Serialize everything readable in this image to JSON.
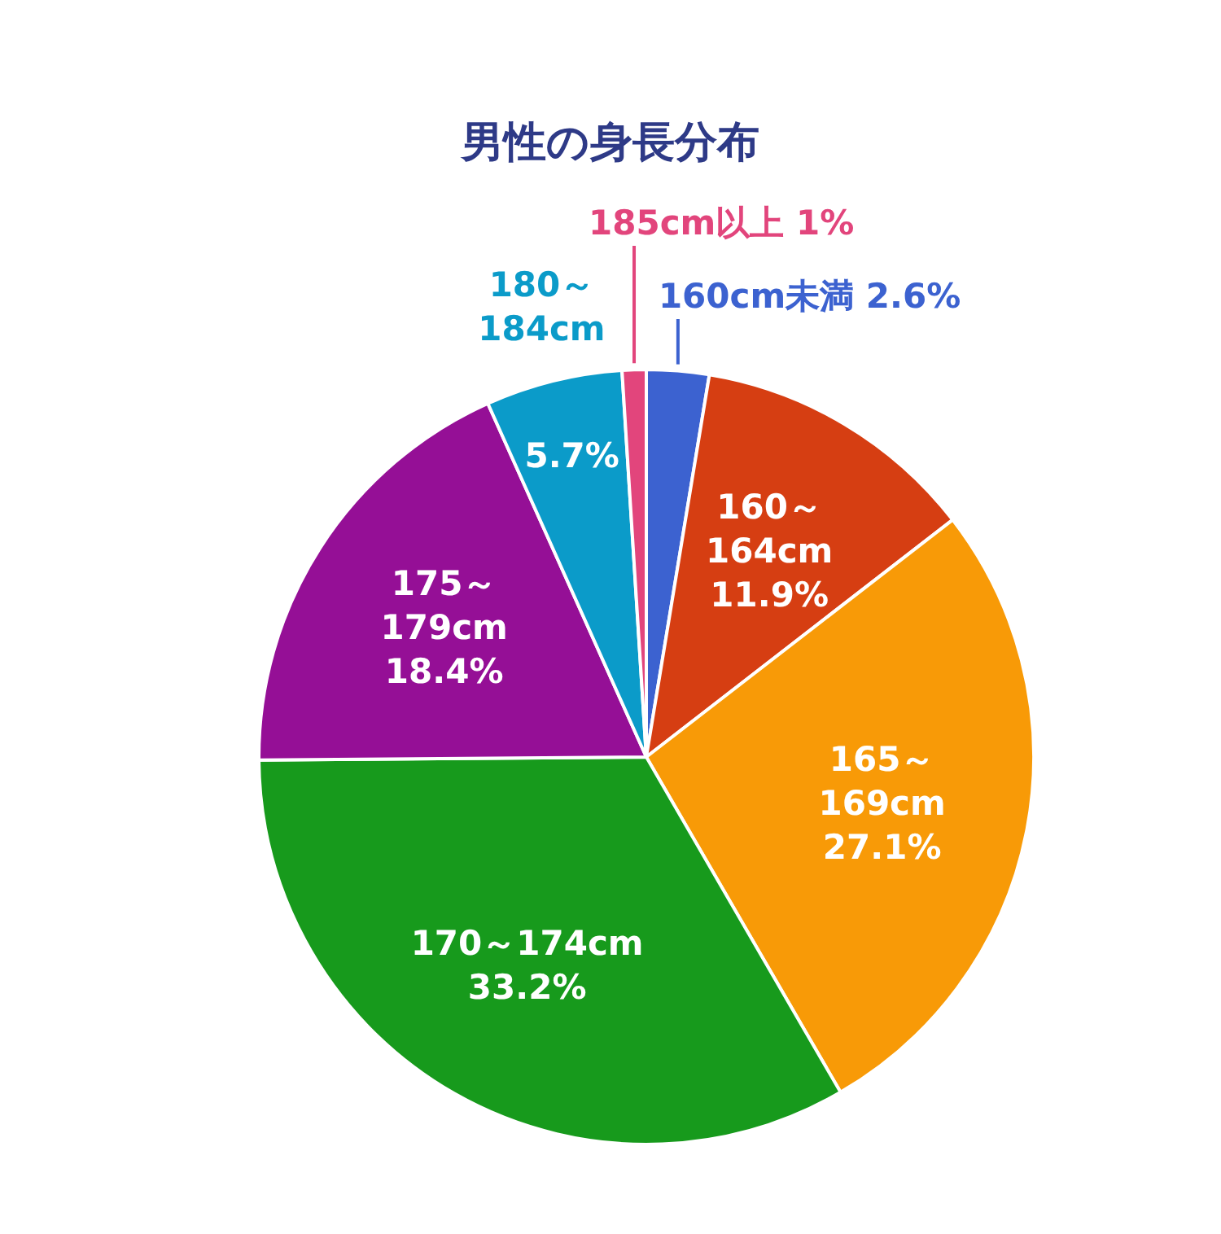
{
  "chart_data": {
    "type": "pie",
    "title": "男性の身長分布",
    "categories": [
      "160cm未満",
      "160～164cm",
      "165～169cm",
      "170～174cm",
      "175～179cm",
      "180～184cm",
      "185cm以上"
    ],
    "values": [
      2.6,
      11.9,
      27.1,
      33.2,
      18.4,
      5.7,
      1
    ],
    "colors": [
      "#3c62d0",
      "#d63e12",
      "#f89a07",
      "#179a1c",
      "#950f96",
      "#0b9bc9",
      "#e2457c"
    ],
    "value_labels": [
      "2.6%",
      "11.9%",
      "27.1%",
      "33.2%",
      "18.4%",
      "5.7%",
      "1%"
    ]
  }
}
